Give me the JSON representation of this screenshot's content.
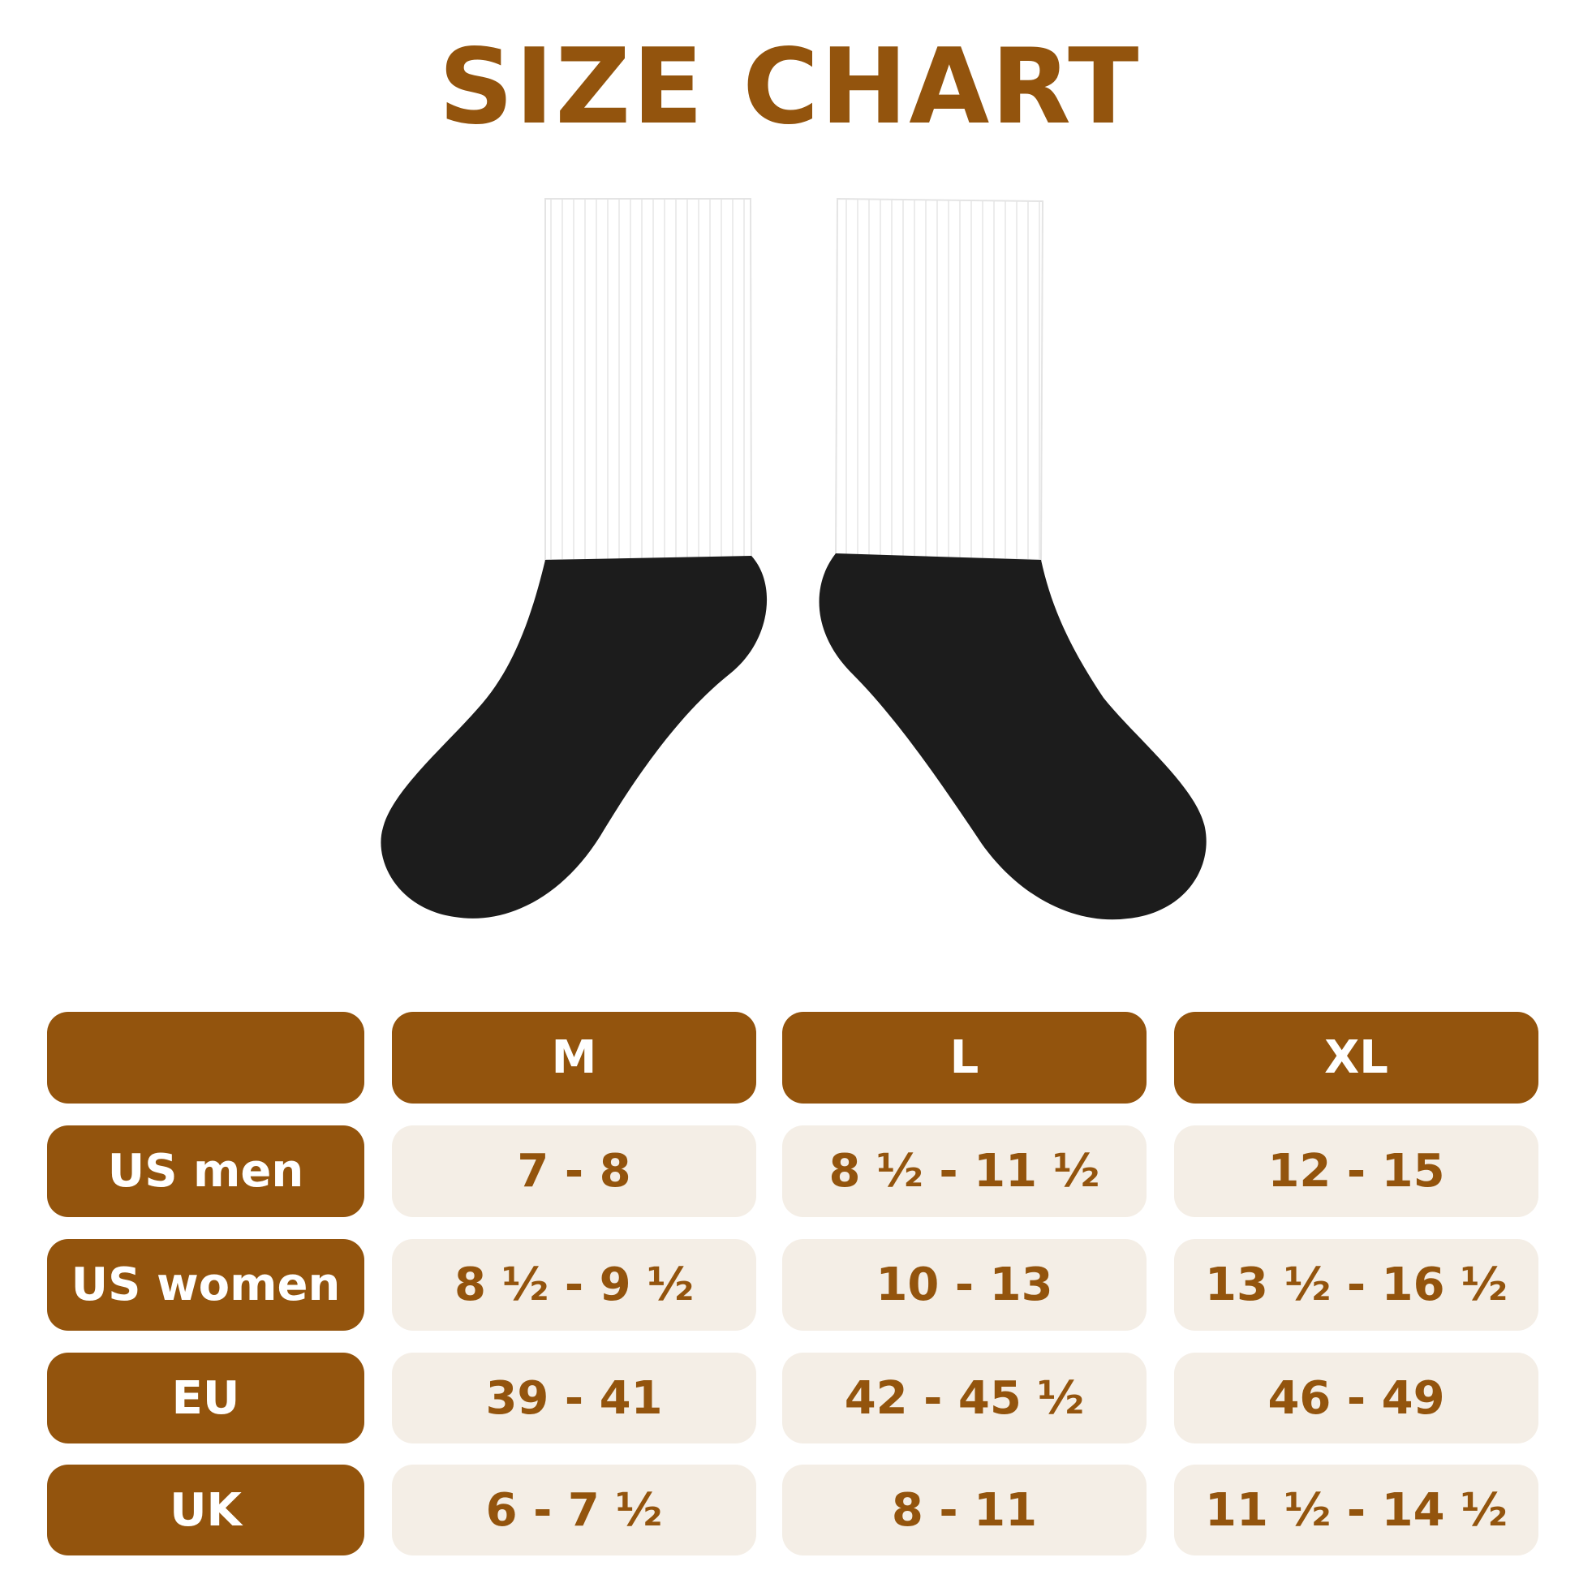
{
  "title": "SIZE CHART",
  "colors": {
    "brand": "#93540d",
    "cell_bg": "#f4eee6",
    "sock_top": "#ffffff",
    "sock_foot": "#1c1c1c"
  },
  "table": {
    "columns": [
      "",
      "M",
      "L",
      "XL"
    ],
    "rows": [
      {
        "label": "US men",
        "values": [
          "7 - 8",
          "8 ½ - 11 ½",
          "12 - 15"
        ]
      },
      {
        "label": "US women",
        "values": [
          "8 ½ - 9 ½",
          "10 - 13",
          "13 ½ - 16 ½"
        ]
      },
      {
        "label": "EU",
        "values": [
          "39 - 41",
          "42 - 45 ½",
          "46 - 49"
        ]
      },
      {
        "label": "UK",
        "values": [
          "6 - 7 ½",
          "8 - 11",
          "11 ½ - 14 ½"
        ]
      }
    ]
  }
}
